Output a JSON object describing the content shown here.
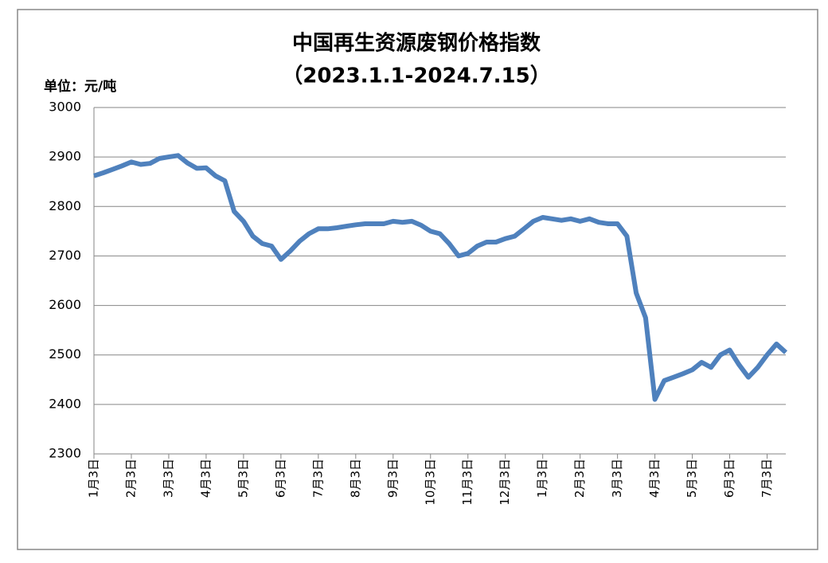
{
  "chart_data": {
    "type": "line",
    "title": "中国再生资源废钢价格指数",
    "subtitle": "（2023.1.1-2024.7.15）",
    "y_unit_label": "单位：元/吨",
    "categories": [
      "1月3日",
      null,
      null,
      null,
      "2月3日",
      null,
      null,
      null,
      "3月3日",
      null,
      null,
      null,
      "4月3日",
      null,
      null,
      null,
      "5月3日",
      null,
      null,
      null,
      "6月3日",
      null,
      null,
      null,
      "7月3日",
      null,
      null,
      null,
      "8月3日",
      null,
      null,
      null,
      "9月3日",
      null,
      null,
      null,
      "10月3日",
      null,
      null,
      null,
      "11月3日",
      null,
      null,
      null,
      "12月3日",
      null,
      null,
      null,
      "1月3日",
      null,
      null,
      null,
      "2月3日",
      null,
      null,
      null,
      "3月3日",
      null,
      null,
      null,
      "4月3日",
      null,
      null,
      null,
      "5月3日",
      null,
      null,
      null,
      "6月3日",
      null,
      null,
      null,
      "7月3日",
      null,
      null
    ],
    "series": [
      {
        "name": "中国再生资源废钢价格指数",
        "color": "#4f81bd",
        "values": [
          2862,
          2868,
          2875,
          2882,
          2890,
          2885,
          2887,
          2897,
          2900,
          2903,
          2888,
          2877,
          2878,
          2862,
          2852,
          2790,
          2770,
          2740,
          2725,
          2720,
          2693,
          2710,
          2730,
          2745,
          2755,
          2755,
          2757,
          2760,
          2763,
          2765,
          2765,
          2765,
          2770,
          2768,
          2770,
          2762,
          2750,
          2745,
          2725,
          2700,
          2705,
          2720,
          2728,
          2728,
          2735,
          2740,
          2755,
          2770,
          2778,
          2775,
          2772,
          2775,
          2770,
          2775,
          2768,
          2765,
          2765,
          2740,
          2625,
          2575,
          2410,
          2448,
          2455,
          2462,
          2470,
          2485,
          2475,
          2500,
          2510,
          2480,
          2455,
          2475,
          2500,
          2522,
          2505
        ]
      }
    ],
    "ylim": [
      2300,
      3000
    ],
    "yticks": [
      2300,
      2400,
      2500,
      2600,
      2700,
      2800,
      2900,
      3000
    ],
    "grid": true
  }
}
